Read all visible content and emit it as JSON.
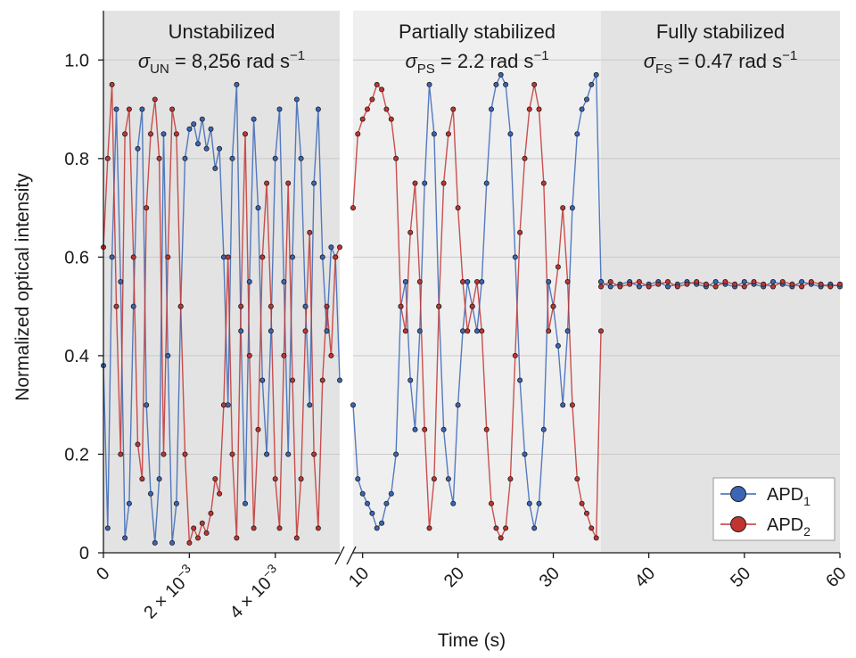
{
  "chart_data": {
    "type": "scatter",
    "xlabel": "Time (s)",
    "ylabel": "Normalized optical intensity",
    "ylim": [
      0,
      1.1
    ],
    "y_ticks": [
      0,
      0.2,
      0.4,
      0.6,
      0.8,
      1.0
    ],
    "y_tick_labels": [
      "0",
      "0.2",
      "0.4",
      "0.6",
      "0.8",
      "1.0"
    ],
    "axis_break": true,
    "grid": "horizontal",
    "legend_position": "bottom-right",
    "colors": {
      "apd1": "#3a66b6",
      "apd2": "#c23431",
      "panel_dark": "#e3e3e3",
      "panel_light": "#efefef"
    },
    "panels": [
      {
        "id": "unstabilized",
        "title": "Unstabilized",
        "sigma_symbol": "σ",
        "sigma_subscript": "UN",
        "sigma_value": " = 8,256 rad s",
        "sigma_exponent": "−1",
        "x_unit": "s",
        "xlim": [
          0,
          0.0055
        ],
        "x_ticks": [
          0,
          0.002,
          0.004
        ],
        "x_tick_labels": [
          {
            "main": "0",
            "exp": ""
          },
          {
            "main": "2 × 10",
            "exp": "−3"
          },
          {
            "main": "4 × 10",
            "exp": "−3"
          }
        ]
      },
      {
        "id": "partially-stabilized",
        "title": "Partially stabilized",
        "sigma_symbol": "σ",
        "sigma_subscript": "PS",
        "sigma_value": " = 2.2 rad s",
        "sigma_exponent": "−1",
        "x_unit": "s",
        "xlim": [
          9,
          35
        ],
        "x_ticks": [
          10,
          20,
          30
        ],
        "x_tick_labels": [
          {
            "main": "10",
            "exp": ""
          },
          {
            "main": "20",
            "exp": ""
          },
          {
            "main": "30",
            "exp": ""
          }
        ]
      },
      {
        "id": "fully-stabilized",
        "title": "Fully stabilized",
        "sigma_symbol": "σ",
        "sigma_subscript": "FS",
        "sigma_value": " = 0.47 rad s",
        "sigma_exponent": "−1",
        "x_unit": "s",
        "xlim": [
          35,
          60
        ],
        "x_ticks": [
          40,
          50,
          60
        ],
        "x_tick_labels": [
          {
            "main": "40",
            "exp": ""
          },
          {
            "main": "50",
            "exp": ""
          },
          {
            "main": "60",
            "exp": ""
          }
        ]
      }
    ],
    "series": [
      {
        "name": "APD",
        "name_subscript": "1",
        "color": "#3a66b6",
        "segments": [
          {
            "panel": "unstabilized",
            "x": [
              0,
              0.0001,
              0.0002,
              0.0003,
              0.0004,
              0.0005,
              0.0006,
              0.0007,
              0.0008,
              0.0009,
              0.001,
              0.0011,
              0.0012,
              0.0013,
              0.0014,
              0.0015,
              0.0016,
              0.0017,
              0.0018,
              0.0019,
              0.002,
              0.0021,
              0.0022,
              0.0023,
              0.0024,
              0.0025,
              0.0026,
              0.0027,
              0.0028,
              0.0029,
              0.003,
              0.0031,
              0.0032,
              0.0033,
              0.0034,
              0.0035,
              0.0036,
              0.0037,
              0.0038,
              0.0039,
              0.004,
              0.0041,
              0.0042,
              0.0043,
              0.0044,
              0.0045,
              0.0046,
              0.0047,
              0.0048,
              0.0049,
              0.005,
              0.0051,
              0.0052,
              0.0053,
              0.0054,
              0.0055
            ],
            "y": [
              0.38,
              0.05,
              0.6,
              0.9,
              0.55,
              0.03,
              0.1,
              0.5,
              0.82,
              0.9,
              0.3,
              0.12,
              0.02,
              0.15,
              0.85,
              0.4,
              0.02,
              0.1,
              0.5,
              0.8,
              0.86,
              0.87,
              0.83,
              0.88,
              0.82,
              0.86,
              0.78,
              0.82,
              0.6,
              0.3,
              0.8,
              0.95,
              0.45,
              0.1,
              0.55,
              0.88,
              0.7,
              0.35,
              0.2,
              0.45,
              0.8,
              0.9,
              0.55,
              0.2,
              0.6,
              0.92,
              0.8,
              0.5,
              0.3,
              0.75,
              0.9,
              0.6,
              0.45,
              0.62,
              0.6,
              0.35
            ]
          },
          {
            "panel": "partially-stabilized",
            "x": [
              9,
              9.5,
              10,
              10.5,
              11,
              11.5,
              12,
              12.5,
              13,
              13.5,
              14,
              14.5,
              15,
              15.5,
              16,
              16.5,
              17,
              17.5,
              18,
              18.5,
              19,
              19.5,
              20,
              20.5,
              21,
              21.5,
              22,
              22.5,
              23,
              23.5,
              24,
              24.5,
              25,
              25.5,
              26,
              26.5,
              27,
              27.5,
              28,
              28.5,
              29,
              29.5,
              30,
              30.5,
              31,
              31.5,
              32,
              32.5,
              33,
              33.5,
              34,
              34.5,
              35
            ],
            "y": [
              0.3,
              0.15,
              0.12,
              0.1,
              0.08,
              0.05,
              0.06,
              0.1,
              0.12,
              0.2,
              0.5,
              0.55,
              0.35,
              0.25,
              0.45,
              0.75,
              0.95,
              0.85,
              0.5,
              0.25,
              0.15,
              0.1,
              0.3,
              0.45,
              0.55,
              0.5,
              0.45,
              0.55,
              0.75,
              0.9,
              0.95,
              0.97,
              0.95,
              0.85,
              0.6,
              0.35,
              0.2,
              0.1,
              0.05,
              0.1,
              0.25,
              0.55,
              0.5,
              0.42,
              0.3,
              0.45,
              0.7,
              0.85,
              0.9,
              0.92,
              0.95,
              0.97,
              0.55
            ]
          },
          {
            "panel": "fully-stabilized",
            "x": [
              35,
              36,
              37,
              38,
              39,
              40,
              41,
              42,
              43,
              44,
              45,
              46,
              47,
              48,
              49,
              50,
              51,
              52,
              53,
              54,
              55,
              56,
              57,
              58,
              59,
              60
            ],
            "y": [
              0.55,
              0.54,
              0.545,
              0.55,
              0.54,
              0.545,
              0.55,
              0.54,
              0.545,
              0.55,
              0.545,
              0.54,
              0.55,
              0.545,
              0.54,
              0.55,
              0.545,
              0.54,
              0.55,
              0.545,
              0.54,
              0.55,
              0.545,
              0.54,
              0.545,
              0.54
            ]
          }
        ]
      },
      {
        "name": "APD",
        "name_subscript": "2",
        "color": "#c23431",
        "segments": [
          {
            "panel": "unstabilized",
            "x": [
              0,
              0.0001,
              0.0002,
              0.0003,
              0.0004,
              0.0005,
              0.0006,
              0.0007,
              0.0008,
              0.0009,
              0.001,
              0.0011,
              0.0012,
              0.0013,
              0.0014,
              0.0015,
              0.0016,
              0.0017,
              0.0018,
              0.0019,
              0.002,
              0.0021,
              0.0022,
              0.0023,
              0.0024,
              0.0025,
              0.0026,
              0.0027,
              0.0028,
              0.0029,
              0.003,
              0.0031,
              0.0032,
              0.0033,
              0.0034,
              0.0035,
              0.0036,
              0.0037,
              0.0038,
              0.0039,
              0.004,
              0.0041,
              0.0042,
              0.0043,
              0.0044,
              0.0045,
              0.0046,
              0.0047,
              0.0048,
              0.0049,
              0.005,
              0.0051,
              0.0052,
              0.0053,
              0.0054,
              0.0055
            ],
            "y": [
              0.62,
              0.8,
              0.95,
              0.5,
              0.2,
              0.85,
              0.9,
              0.6,
              0.22,
              0.15,
              0.7,
              0.85,
              0.92,
              0.8,
              0.2,
              0.6,
              0.9,
              0.85,
              0.5,
              0.2,
              0.02,
              0.05,
              0.03,
              0.06,
              0.04,
              0.08,
              0.15,
              0.12,
              0.3,
              0.6,
              0.2,
              0.03,
              0.5,
              0.85,
              0.4,
              0.05,
              0.25,
              0.6,
              0.75,
              0.5,
              0.15,
              0.05,
              0.4,
              0.75,
              0.35,
              0.03,
              0.15,
              0.45,
              0.65,
              0.2,
              0.05,
              0.35,
              0.5,
              0.4,
              0.6,
              0.62
            ]
          },
          {
            "panel": "partially-stabilized",
            "x": [
              9,
              9.5,
              10,
              10.5,
              11,
              11.5,
              12,
              12.5,
              13,
              13.5,
              14,
              14.5,
              15,
              15.5,
              16,
              16.5,
              17,
              17.5,
              18,
              18.5,
              19,
              19.5,
              20,
              20.5,
              21,
              21.5,
              22,
              22.5,
              23,
              23.5,
              24,
              24.5,
              25,
              25.5,
              26,
              26.5,
              27,
              27.5,
              28,
              28.5,
              29,
              29.5,
              30,
              30.5,
              31,
              31.5,
              32,
              32.5,
              33,
              33.5,
              34,
              34.5,
              35
            ],
            "y": [
              0.7,
              0.85,
              0.88,
              0.9,
              0.92,
              0.95,
              0.94,
              0.9,
              0.88,
              0.8,
              0.5,
              0.45,
              0.65,
              0.75,
              0.55,
              0.25,
              0.05,
              0.15,
              0.5,
              0.75,
              0.85,
              0.9,
              0.7,
              0.55,
              0.45,
              0.5,
              0.55,
              0.45,
              0.25,
              0.1,
              0.05,
              0.03,
              0.05,
              0.15,
              0.4,
              0.65,
              0.8,
              0.9,
              0.95,
              0.9,
              0.75,
              0.45,
              0.5,
              0.58,
              0.7,
              0.55,
              0.3,
              0.15,
              0.1,
              0.08,
              0.05,
              0.03,
              0.45
            ]
          },
          {
            "panel": "fully-stabilized",
            "x": [
              35,
              36,
              37,
              38,
              39,
              40,
              41,
              42,
              43,
              44,
              45,
              46,
              47,
              48,
              49,
              50,
              51,
              52,
              53,
              54,
              55,
              56,
              57,
              58,
              59,
              60
            ],
            "y": [
              0.54,
              0.55,
              0.54,
              0.545,
              0.55,
              0.54,
              0.545,
              0.55,
              0.54,
              0.545,
              0.55,
              0.545,
              0.54,
              0.55,
              0.545,
              0.54,
              0.55,
              0.545,
              0.54,
              0.55,
              0.545,
              0.54,
              0.55,
              0.545,
              0.54,
              0.545
            ]
          }
        ]
      }
    ]
  }
}
